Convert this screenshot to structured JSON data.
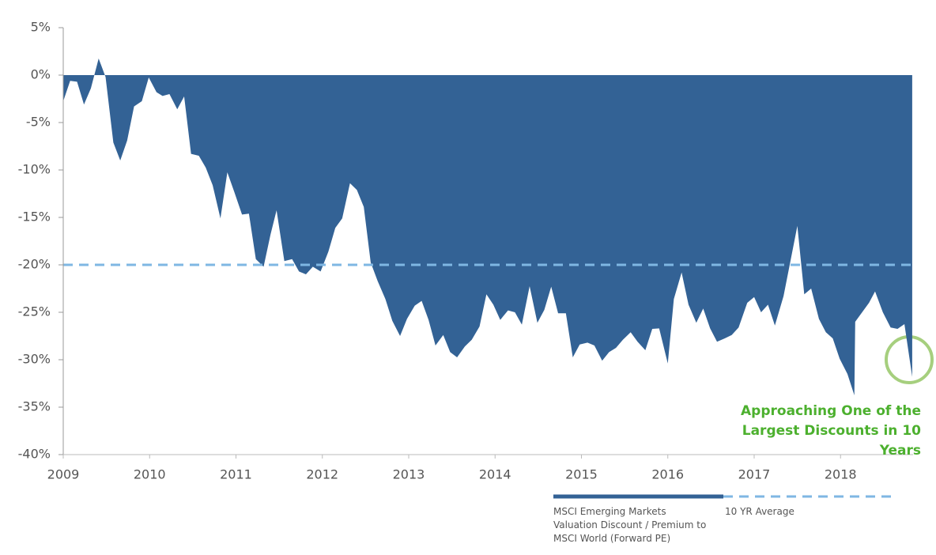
{
  "chart_data": {
    "type": "area",
    "x": [
      2009.0,
      2009.08,
      2009.16,
      2009.24,
      2009.32,
      2009.41,
      2009.49,
      2009.58,
      2009.66,
      2009.74,
      2009.82,
      2009.91,
      2009.99,
      2010.08,
      2010.15,
      2010.23,
      2010.32,
      2010.4,
      2010.48,
      2010.57,
      2010.65,
      2010.73,
      2010.82,
      2010.9,
      2010.98,
      2011.07,
      2011.15,
      2011.23,
      2011.32,
      2011.4,
      2011.47,
      2011.56,
      2011.65,
      2011.73,
      2011.81,
      2011.89,
      2011.98,
      2012.07,
      2012.15,
      2012.23,
      2012.32,
      2012.4,
      2012.48,
      2012.56,
      2012.64,
      2012.73,
      2012.81,
      2012.9,
      2012.98,
      2013.07,
      2013.15,
      2013.23,
      2013.31,
      2013.4,
      2013.48,
      2013.56,
      2013.65,
      2013.73,
      2013.82,
      2013.9,
      2013.98,
      2014.06,
      2014.15,
      2014.23,
      2014.31,
      2014.4,
      2014.49,
      2014.57,
      2014.65,
      2014.73,
      2014.82,
      2014.9,
      2014.98,
      2015.07,
      2015.15,
      2015.24,
      2015.32,
      2015.4,
      2015.48,
      2015.57,
      2015.65,
      2015.74,
      2015.82,
      2015.9,
      2016.0,
      2016.07,
      2016.16,
      2016.24,
      2016.33,
      2016.41,
      2016.49,
      2016.57,
      2016.66,
      2016.74,
      2016.82,
      2016.92,
      2017.0,
      2017.08,
      2017.16,
      2017.24,
      2017.34,
      2017.42,
      2017.5,
      2017.58,
      2017.66,
      2017.75,
      2017.83,
      2017.91,
      2017.99,
      2018.08,
      2018.16,
      2018.17,
      2018.25,
      2018.33,
      2018.4,
      2018.49,
      2018.58,
      2018.66,
      2018.74,
      2018.83
    ],
    "series": [
      {
        "name": "MSCI Emerging Markets Valuation Discount / Premium to MSCI World (Forward PE)",
        "color": "#336295",
        "values": [
          -2.75,
          -0.6,
          -0.7,
          -3.1,
          -1.4,
          1.75,
          -0.2,
          -7.1,
          -9,
          -6.9,
          -3.3,
          -2.75,
          -0.25,
          -1.8,
          -2.2,
          -2,
          -3.6,
          -2.25,
          -8.3,
          -8.5,
          -9.75,
          -11.6,
          -15.1,
          -10.25,
          -12.3,
          -14.7,
          -14.6,
          -19.4,
          -20.2,
          -16.8,
          -14.25,
          -19.6,
          -19.4,
          -20.7,
          -21,
          -20.2,
          -20.7,
          -18.6,
          -16.1,
          -15.1,
          -11.4,
          -12.1,
          -13.9,
          -19.75,
          -21.7,
          -23.6,
          -25.9,
          -27.5,
          -25.7,
          -24.3,
          -23.8,
          -25.8,
          -28.5,
          -27.4,
          -29.2,
          -29.75,
          -28.6,
          -27.9,
          -26.5,
          -23.1,
          -24.2,
          -25.8,
          -24.8,
          -25,
          -26.3,
          -22.25,
          -26.1,
          -24.75,
          -22.3,
          -25.1,
          -25.1,
          -29.75,
          -28.4,
          -28.2,
          -28.5,
          -30.1,
          -29.2,
          -28.75,
          -27.9,
          -27.1,
          -28.1,
          -29,
          -26.75,
          -26.7,
          -30.4,
          -23.6,
          -20.8,
          -24.2,
          -26.1,
          -24.6,
          -26.7,
          -28.1,
          -27.75,
          -27.4,
          -26.6,
          -24,
          -23.4,
          -25,
          -24.2,
          -26.4,
          -23.3,
          -19.6,
          -15.9,
          -23.1,
          -22.5,
          -25.7,
          -27.1,
          -27.75,
          -29.9,
          -31.5,
          -33.75,
          -26,
          -25,
          -24,
          -22.8,
          -25,
          -26.6,
          -26.75,
          -26.25,
          -31.8
        ]
      }
    ],
    "average": {
      "name": "10 YR Average",
      "value": -20,
      "color": "#7fb7e3"
    },
    "annotation": "Approaching One of the Largest Discounts in 10 Years",
    "annotation_color": "#4cb02e",
    "xlim": [
      2009,
      2018.84
    ],
    "xticks": [
      2009,
      2010,
      2011,
      2012,
      2013,
      2014,
      2015,
      2016,
      2017,
      2018
    ],
    "ylim": [
      -40,
      5
    ],
    "yticks": [
      {
        "value": 5,
        "label": "5%"
      },
      {
        "value": 0,
        "label": "0%"
      },
      {
        "value": -5,
        "label": "-5%"
      },
      {
        "value": -10,
        "label": "-10%"
      },
      {
        "value": -15,
        "label": "-15%"
      },
      {
        "value": -20,
        "label": "-20%"
      },
      {
        "value": -25,
        "label": "-25%"
      },
      {
        "value": -30,
        "label": "-30%"
      },
      {
        "value": -35,
        "label": "-35%"
      },
      {
        "value": -40,
        "label": "-40%"
      }
    ]
  }
}
